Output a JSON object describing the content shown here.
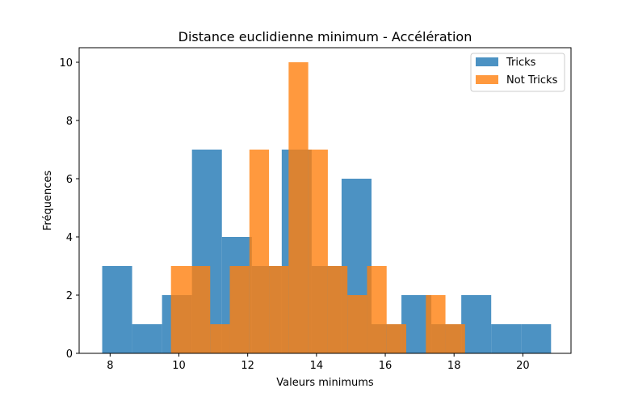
{
  "chart_data": {
    "type": "histogram",
    "title": "Distance euclidienne minimum - Accélération",
    "xlabel": "Valeurs minimums",
    "ylabel": "Fréquences",
    "xlim": [
      7.1,
      21.4
    ],
    "ylim": [
      0,
      10.5
    ],
    "xticks": [
      8,
      10,
      12,
      14,
      16,
      18,
      20
    ],
    "yticks": [
      0,
      2,
      4,
      6,
      8,
      10
    ],
    "grid": false,
    "legend_position": "top-right",
    "series": [
      {
        "name": "Tricks",
        "color": "#1f77b4",
        "opacity": 0.8,
        "bin_edges": [
          7.77,
          8.64,
          9.51,
          10.38,
          11.25,
          12.12,
          12.99,
          13.86,
          14.73,
          15.6,
          16.47,
          17.34,
          18.21,
          19.08,
          19.95,
          20.82
        ],
        "counts": [
          3,
          1,
          2,
          7,
          4,
          3,
          7,
          3,
          6,
          1,
          2,
          1,
          2,
          1,
          1
        ]
      },
      {
        "name": "Not Tricks",
        "color": "#ff7f0e",
        "opacity": 0.8,
        "bin_edges": [
          9.77,
          10.34,
          10.91,
          11.48,
          12.05,
          12.62,
          13.19,
          13.76,
          14.33,
          14.9,
          15.47,
          16.04,
          16.61,
          17.18,
          17.75,
          18.32
        ],
        "counts": [
          3,
          3,
          1,
          3,
          7,
          3,
          10,
          7,
          3,
          2,
          3,
          1,
          0,
          2,
          1
        ]
      }
    ]
  }
}
